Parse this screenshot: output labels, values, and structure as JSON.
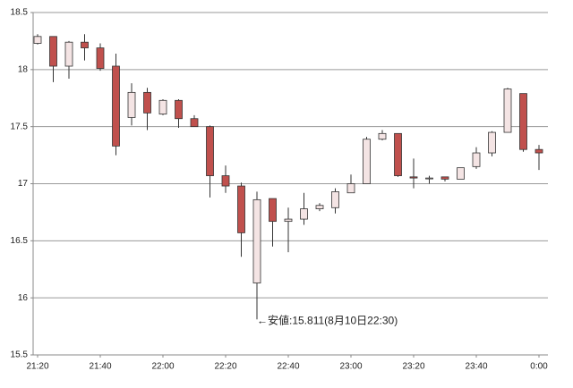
{
  "chart_data": {
    "type": "candlestick",
    "categories": [
      "21:20",
      null,
      null,
      null,
      "21:40",
      null,
      null,
      null,
      "22:00",
      null,
      null,
      null,
      "22:20",
      null,
      null,
      null,
      "22:40",
      null,
      null,
      null,
      "23:00",
      null,
      null,
      null,
      "23:20",
      null,
      null,
      null,
      "23:40",
      null,
      null,
      null,
      "0:00"
    ],
    "open": [
      18.23,
      18.29,
      18.03,
      18.24,
      18.19,
      18.03,
      17.58,
      17.8,
      17.61,
      17.73,
      17.57,
      17.5,
      17.07,
      16.98,
      16.13,
      16.87,
      16.67,
      16.69,
      16.78,
      16.79,
      16.92,
      17.0,
      17.39,
      17.44,
      17.06,
      17.05,
      17.06,
      17.04,
      17.15,
      17.27,
      17.45,
      17.79,
      17.3
    ],
    "high": [
      18.31,
      18.29,
      18.25,
      18.31,
      18.23,
      18.14,
      17.88,
      17.84,
      17.74,
      17.74,
      17.6,
      17.51,
      17.16,
      17.01,
      16.93,
      16.87,
      16.79,
      16.92,
      16.83,
      16.96,
      17.08,
      17.41,
      17.47,
      17.44,
      17.22,
      17.07,
      17.06,
      17.14,
      17.32,
      17.46,
      17.84,
      17.79,
      17.34
    ],
    "low": [
      18.22,
      17.89,
      17.92,
      18.08,
      17.99,
      17.25,
      17.51,
      17.47,
      17.6,
      17.49,
      17.5,
      16.88,
      16.92,
      16.36,
      15.811,
      16.45,
      16.4,
      16.64,
      16.76,
      16.74,
      16.92,
      17.0,
      17.38,
      17.06,
      16.96,
      17.0,
      17.02,
      17.04,
      17.13,
      17.24,
      17.45,
      17.28,
      17.12
    ],
    "close": [
      18.29,
      18.03,
      18.24,
      18.19,
      18.01,
      17.33,
      17.8,
      17.62,
      17.73,
      17.57,
      17.5,
      17.07,
      16.98,
      16.57,
      16.86,
      16.67,
      16.69,
      16.78,
      16.81,
      16.93,
      17.0,
      17.39,
      17.44,
      17.07,
      17.05,
      17.05,
      17.04,
      17.14,
      17.27,
      17.45,
      17.83,
      17.3,
      17.27
    ],
    "up_color": "#f4e4e4",
    "down_color": "#c0504d",
    "ylim": [
      15.5,
      18.5
    ],
    "yticks": [
      15.5,
      16,
      16.5,
      17,
      17.5,
      18,
      18.5
    ],
    "grid": true,
    "annotation": {
      "index": 14,
      "text": "←安値:15.811(8月10日22:30)"
    }
  }
}
